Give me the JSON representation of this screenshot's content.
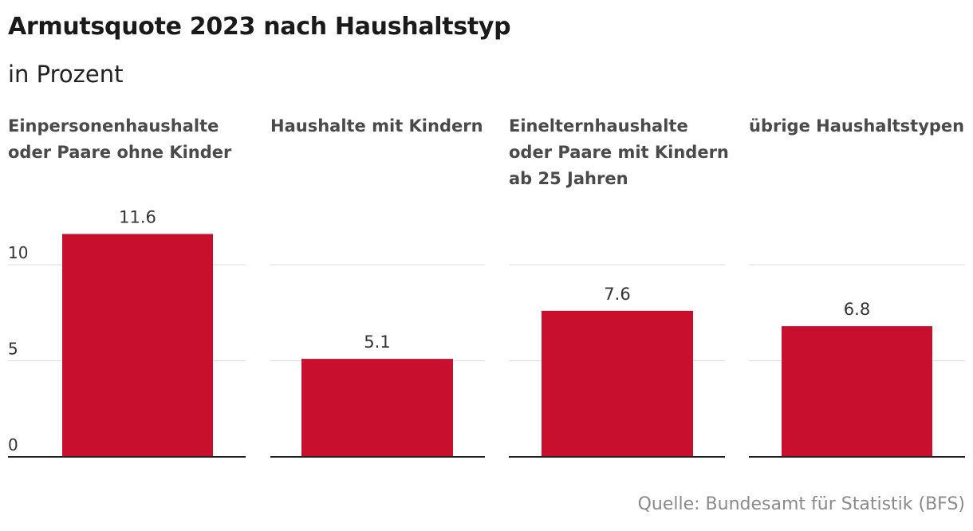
{
  "title": "Armutsquote 2023 nach Haushaltstyp",
  "subtitle": "in Prozent",
  "source": "Quelle: Bundesamt für Statistik (BFS)",
  "colors": {
    "bar": "#c8102e",
    "grid": "#dddddd",
    "axis": "#222222"
  },
  "chart_data": {
    "type": "bar",
    "title": "Armutsquote 2023 nach Haushaltstyp",
    "ylabel": "in Prozent",
    "ylim": [
      0,
      12
    ],
    "yticks": [
      0,
      5,
      10
    ],
    "categories": [
      "Einpersonenhaushalte oder Paare ohne Kinder",
      "Haushalte mit Kindern",
      "Einelternhaushalte oder Paare mit Kindern ab 25 Jahren",
      "übrige Haushaltstypen"
    ],
    "panel_titles": [
      [
        "Einpersonenhaushalte",
        "oder Paare ohne Kinder"
      ],
      [
        "Haushalte mit Kindern"
      ],
      [
        "Einelternhaushalte",
        "oder Paare mit Kindern",
        "ab 25 Jahren"
      ],
      [
        "übrige Haushaltstypen"
      ]
    ],
    "values": [
      11.6,
      5.1,
      7.6,
      6.8
    ],
    "value_labels": [
      "11.6",
      "5.1",
      "7.6",
      "6.8"
    ]
  }
}
